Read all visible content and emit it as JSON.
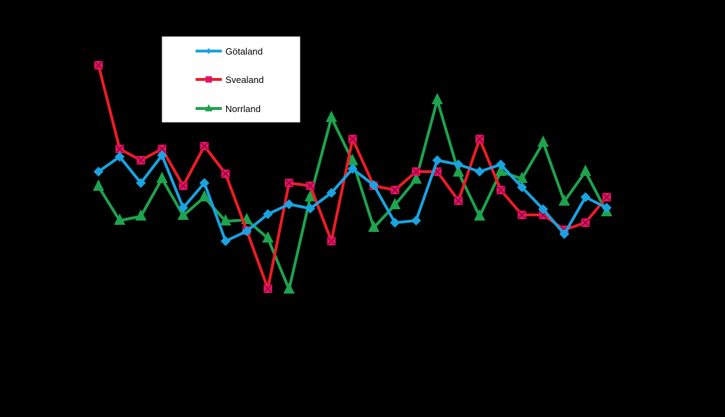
{
  "chart_data": {
    "type": "line",
    "title": "",
    "xlabel": "",
    "ylabel": "",
    "grid": false,
    "legend_position": "top-left",
    "background": "#000000",
    "x": [
      1,
      2,
      3,
      4,
      5,
      6,
      7,
      8,
      9,
      10,
      11,
      12,
      13,
      14,
      15,
      16,
      17,
      18,
      19,
      20,
      21,
      22,
      23,
      24,
      25
    ],
    "ylim": [
      0,
      588
    ],
    "series": [
      {
        "name": "Götaland",
        "color": "#1aa3e0",
        "marker": "diamond",
        "values": [
          346,
          367,
          330,
          369,
          295,
          330,
          248,
          262,
          286,
          300,
          294,
          316,
          350,
          327,
          274,
          277,
          362,
          356,
          346,
          356,
          324,
          293,
          258,
          310,
          295
        ]
      },
      {
        "name": "Svealand",
        "color": "#ee1c25",
        "marker": "square-x",
        "values": [
          496,
          378,
          362,
          378,
          326,
          382,
          343,
          263,
          181,
          330,
          326,
          248,
          392,
          326,
          320,
          346,
          346,
          305,
          392,
          320,
          285,
          285,
          264,
          274,
          310
        ]
      },
      {
        "name": "Norrland",
        "color": "#1ea34e",
        "marker": "triangle",
        "values": [
          325,
          277,
          283,
          336,
          284,
          310,
          276,
          278,
          252,
          180,
          310,
          422,
          361,
          267,
          299,
          335,
          447,
          345,
          283,
          346,
          336,
          387,
          304,
          346,
          289
        ]
      }
    ]
  }
}
